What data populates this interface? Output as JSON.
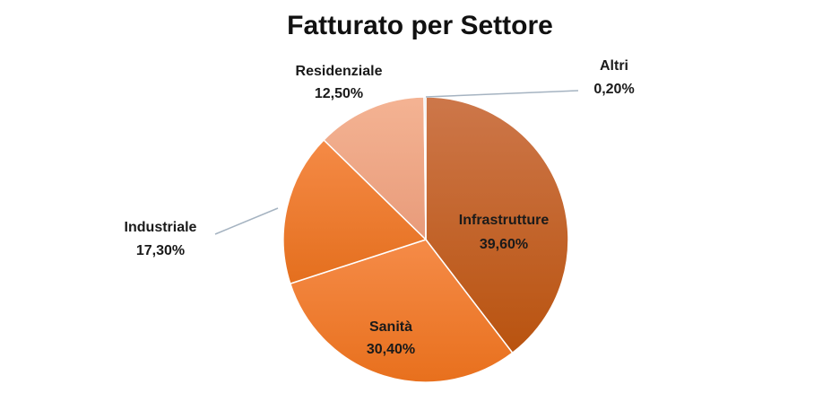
{
  "chart_data": {
    "type": "pie",
    "title": "Fatturato per Settore",
    "slices": [
      {
        "label": "Infrastrutture",
        "value": 39.6,
        "value_label": "39,60%",
        "color_top": "#cd774a",
        "color_bottom": "#b9530f"
      },
      {
        "label": "Sanità",
        "value": 30.4,
        "value_label": "30,40%",
        "color_top": "#f58b48",
        "color_bottom": "#e8701d"
      },
      {
        "label": "Industriale",
        "value": 17.3,
        "value_label": "17,30%",
        "color_top": "#f58a46",
        "color_bottom": "#e46f1e"
      },
      {
        "label": "Residenziale",
        "value": 12.5,
        "value_label": "12,50%",
        "color_top": "#f4b393",
        "color_bottom": "#e89b7a"
      },
      {
        "label": "Altri",
        "value": 0.2,
        "value_label": "0,20%",
        "color_top": "#c9d3dc",
        "color_bottom": "#aab6c2"
      }
    ],
    "start_angle": "12 o'clock",
    "direction": "clockwise",
    "legend": "none",
    "leader_line_color": "#a5b3c1"
  }
}
